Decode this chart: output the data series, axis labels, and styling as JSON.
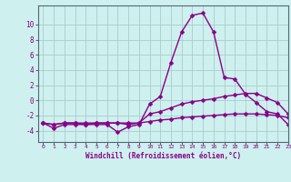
{
  "x": [
    0,
    1,
    2,
    3,
    4,
    5,
    6,
    7,
    8,
    9,
    10,
    11,
    12,
    13,
    14,
    15,
    16,
    17,
    18,
    19,
    20,
    21,
    22,
    23
  ],
  "line1": [
    -3,
    -3.7,
    -3.2,
    -3.2,
    -3.2,
    -3.2,
    -3.2,
    -4.2,
    -3.5,
    -3.2,
    -0.5,
    0.5,
    5,
    9,
    11.2,
    11.5,
    9,
    3,
    2.8,
    0.8,
    -0.3,
    -1.5,
    -1.8,
    -3.2
  ],
  "line2": [
    -3,
    -3.2,
    -3,
    -3,
    -3.2,
    -3,
    -3,
    -3,
    -3,
    -3,
    -1.8,
    -1.5,
    -1,
    -0.5,
    -0.2,
    0,
    0.2,
    0.5,
    0.7,
    0.9,
    0.9,
    0.3,
    -0.3,
    -1.8
  ],
  "line3": [
    -3,
    -3.2,
    -3,
    -3,
    -3,
    -3,
    -3,
    -3,
    -3.2,
    -3,
    -2.8,
    -2.6,
    -2.5,
    -2.3,
    -2.2,
    -2.1,
    -2.0,
    -1.9,
    -1.8,
    -1.8,
    -1.8,
    -1.9,
    -2.0,
    -2.3
  ],
  "bg_color": "#cef0ee",
  "line_color": "#880088",
  "grid_color": "#aacccc",
  "yticks": [
    -4,
    -2,
    0,
    2,
    4,
    6,
    8,
    10
  ],
  "ylim": [
    -5.5,
    12.5
  ],
  "xlim": [
    -0.5,
    23
  ],
  "xlabel": "Windchill (Refroidissement éolien,°C)",
  "xticks": [
    0,
    1,
    2,
    3,
    4,
    5,
    6,
    7,
    8,
    9,
    10,
    11,
    12,
    13,
    14,
    15,
    16,
    17,
    18,
    19,
    20,
    21,
    22,
    23
  ],
  "markersize": 2.5,
  "linewidth": 1.0
}
